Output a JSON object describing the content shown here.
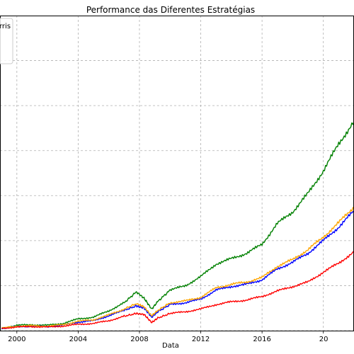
{
  "chart_data": {
    "type": "line",
    "title": "Performance das Diferentes Estratégias",
    "xlabel": "Data",
    "ylabel": "",
    "grid": true,
    "legend_position": "top-left",
    "legend_visible_text": "rris",
    "x_ticks": [
      "2000",
      "2004",
      "2008",
      "2012",
      "2016",
      "20"
    ],
    "xlim": [
      1998.9,
      2022.0
    ],
    "ylim": [
      0.0,
      7.0
    ],
    "series": [
      {
        "color": "#008000",
        "x": [
          1999.0,
          2000.0,
          2001.0,
          2002.0,
          2003.0,
          2004.0,
          2005.0,
          2006.0,
          2007.0,
          2007.8,
          2008.3,
          2008.8,
          2009.2,
          2010.0,
          2011.0,
          2012.0,
          2013.0,
          2014.0,
          2015.0,
          2016.0,
          2017.0,
          2018.0,
          2019.0,
          2020.0,
          2021.0,
          2022.0
        ],
        "y": [
          0.05,
          0.12,
          0.13,
          0.12,
          0.16,
          0.26,
          0.3,
          0.44,
          0.62,
          0.86,
          0.72,
          0.48,
          0.65,
          0.9,
          1.0,
          1.2,
          1.48,
          1.6,
          1.72,
          1.92,
          2.38,
          2.64,
          3.05,
          3.55,
          4.15,
          4.65
        ]
      },
      {
        "color": "#0000ff",
        "x": [
          1999.0,
          2000.0,
          2001.0,
          2002.0,
          2003.0,
          2004.0,
          2005.0,
          2006.0,
          2007.0,
          2007.8,
          2008.3,
          2008.8,
          2009.2,
          2010.0,
          2011.0,
          2012.0,
          2013.0,
          2014.0,
          2015.0,
          2016.0,
          2017.0,
          2018.0,
          2019.0,
          2020.0,
          2021.0,
          2022.0
        ],
        "y": [
          0.05,
          0.09,
          0.1,
          0.09,
          0.12,
          0.19,
          0.22,
          0.33,
          0.45,
          0.55,
          0.5,
          0.3,
          0.42,
          0.58,
          0.62,
          0.7,
          0.9,
          0.98,
          1.03,
          1.13,
          1.37,
          1.52,
          1.72,
          2.0,
          2.3,
          2.66
        ]
      },
      {
        "color": "#ffa500",
        "x": [
          1999.0,
          2000.0,
          2001.0,
          2002.0,
          2003.0,
          2004.0,
          2005.0,
          2006.0,
          2007.0,
          2007.8,
          2008.3,
          2008.8,
          2009.2,
          2010.0,
          2011.0,
          2012.0,
          2013.0,
          2014.0,
          2015.0,
          2016.0,
          2017.0,
          2018.0,
          2019.0,
          2020.0,
          2021.0,
          2022.0
        ],
        "y": [
          0.05,
          0.1,
          0.11,
          0.1,
          0.13,
          0.21,
          0.24,
          0.35,
          0.48,
          0.6,
          0.53,
          0.33,
          0.45,
          0.62,
          0.66,
          0.74,
          0.95,
          1.03,
          1.08,
          1.18,
          1.43,
          1.58,
          1.8,
          2.08,
          2.4,
          2.75
        ]
      },
      {
        "color": "#ff0000",
        "x": [
          1999.0,
          2000.0,
          2001.0,
          2002.0,
          2003.0,
          2004.0,
          2005.0,
          2006.0,
          2007.0,
          2007.8,
          2008.3,
          2008.8,
          2009.2,
          2010.0,
          2011.0,
          2012.0,
          2013.0,
          2014.0,
          2015.0,
          2016.0,
          2017.0,
          2018.0,
          2019.0,
          2020.0,
          2021.0,
          2022.0
        ],
        "y": [
          0.05,
          0.08,
          0.09,
          0.08,
          0.1,
          0.14,
          0.16,
          0.22,
          0.32,
          0.38,
          0.36,
          0.18,
          0.28,
          0.38,
          0.42,
          0.48,
          0.58,
          0.64,
          0.68,
          0.76,
          0.88,
          0.98,
          1.08,
          1.3,
          1.5,
          1.75
        ]
      }
    ]
  }
}
